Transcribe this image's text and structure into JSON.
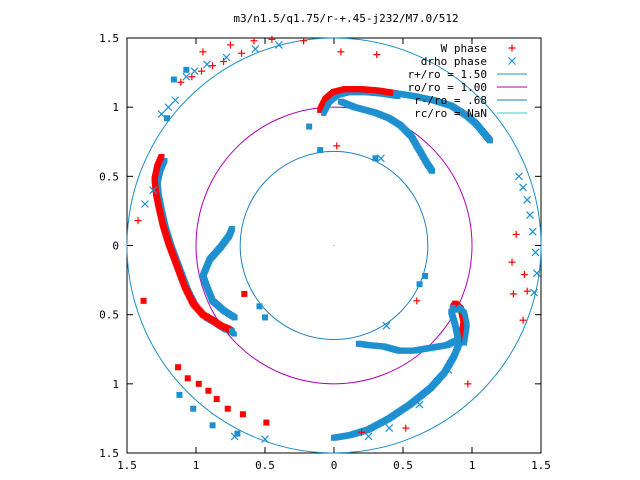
{
  "chart_data": {
    "type": "scatter",
    "title": "m3/n1.5/q1.75/r-+.45-j232/M7.0/512",
    "xlim": [
      -1.5,
      1.5
    ],
    "ylim": [
      -1.5,
      1.5
    ],
    "x_ticks": [
      -1.5,
      -1,
      -0.5,
      0,
      0.5,
      1,
      1.5
    ],
    "x_tick_labels": [
      "1.5",
      "1",
      "0.5",
      "0",
      "0.5",
      "1",
      "1.5"
    ],
    "y_ticks": [
      1.5,
      1,
      0.5,
      0,
      -0.5,
      -1,
      -1.5
    ],
    "y_tick_labels": [
      "1.5",
      "1",
      "0.5",
      "0",
      "0.5",
      "1",
      "1.5"
    ],
    "grid": false,
    "legend_position": "top-right",
    "circles": [
      {
        "label": "r+/ro = 1.50",
        "radius": 1.5,
        "color": "#1f8fc8"
      },
      {
        "label": "ro/ro = 1.00",
        "radius": 1.0,
        "color": "#b000b0"
      },
      {
        "label": "r-/ro = .68",
        "radius": 0.68,
        "color": "#1f7fc0"
      },
      {
        "label": "rc/ro = NaN",
        "radius": null,
        "color": "#40c8c8"
      }
    ],
    "series": [
      {
        "name": "W phase",
        "marker": "+",
        "color": "#ff0000",
        "points": [
          [
            -0.95,
            1.4
          ],
          [
            -0.75,
            1.45
          ],
          [
            -0.58,
            1.48
          ],
          [
            -0.45,
            1.49
          ],
          [
            -0.22,
            1.48
          ],
          [
            0.05,
            1.4
          ],
          [
            0.31,
            1.38
          ],
          [
            -1.11,
            1.18
          ],
          [
            -1.03,
            1.22
          ],
          [
            -0.96,
            1.26
          ],
          [
            -0.88,
            1.3
          ],
          [
            -0.8,
            1.33
          ],
          [
            -0.67,
            1.39
          ],
          [
            0.02,
            0.72
          ],
          [
            -1.42,
            0.18
          ],
          [
            1.29,
            -0.12
          ],
          [
            1.32,
            0.08
          ],
          [
            1.38,
            -0.21
          ],
          [
            1.4,
            -0.33
          ],
          [
            1.37,
            -0.54
          ],
          [
            0.97,
            -1.0
          ],
          [
            0.52,
            -1.32
          ],
          [
            0.2,
            -1.35
          ],
          [
            0.6,
            -0.4
          ],
          [
            1.3,
            -0.35
          ]
        ]
      },
      {
        "name": "drho phase",
        "marker": "x",
        "color": "#1e90d0",
        "points": [
          [
            -1.07,
            1.22
          ],
          [
            -1.01,
            1.26
          ],
          [
            -0.92,
            1.31
          ],
          [
            -0.78,
            1.36
          ],
          [
            -0.57,
            1.42
          ],
          [
            -0.4,
            1.45
          ],
          [
            -1.15,
            1.05
          ],
          [
            -1.2,
            1.0
          ],
          [
            -1.25,
            0.95
          ],
          [
            -1.31,
            0.4
          ],
          [
            -1.37,
            0.3
          ],
          [
            1.34,
            0.5
          ],
          [
            1.37,
            0.42
          ],
          [
            1.4,
            0.33
          ],
          [
            1.42,
            0.22
          ],
          [
            1.44,
            0.1
          ],
          [
            1.46,
            -0.05
          ],
          [
            1.47,
            -0.2
          ],
          [
            1.45,
            -0.34
          ],
          [
            0.38,
            -0.58
          ],
          [
            0.83,
            -0.9
          ],
          [
            0.62,
            -1.15
          ],
          [
            0.4,
            -1.32
          ],
          [
            0.25,
            -1.38
          ],
          [
            -0.72,
            -1.38
          ],
          [
            -0.5,
            -1.4
          ],
          [
            0.34,
            0.63
          ]
        ]
      }
    ],
    "legend": [
      {
        "label": "W phase",
        "kind": "marker",
        "symbol": "+",
        "color": "#ff0000"
      },
      {
        "label": "drho phase",
        "kind": "marker",
        "symbol": "x",
        "color": "#1e90d0"
      },
      {
        "label": "r+/ro = 1.50",
        "kind": "line",
        "color": "#1f8fc8"
      },
      {
        "label": "ro/ro = 1.00",
        "kind": "line",
        "color": "#b000b0"
      },
      {
        "label": "r-/ro = .68",
        "kind": "line",
        "color": "#1f7fc0"
      },
      {
        "label": "rc/ro = NaN",
        "kind": "line",
        "color": "#40c8c8"
      }
    ],
    "arms": [
      {
        "name": "upper-arm",
        "path": [
          [
            -0.1,
            0.98
          ],
          [
            -0.06,
            1.06
          ],
          [
            0.0,
            1.11
          ],
          [
            0.08,
            1.13
          ],
          [
            0.2,
            1.13
          ],
          [
            0.32,
            1.12
          ],
          [
            0.45,
            1.1
          ],
          [
            0.58,
            1.08
          ],
          [
            0.72,
            1.05
          ],
          [
            0.85,
            1.01
          ],
          [
            0.96,
            0.94
          ],
          [
            1.03,
            0.88
          ],
          [
            1.08,
            0.82
          ],
          [
            1.13,
            0.76
          ]
        ],
        "red_from": 0,
        "red_to": 6,
        "branch": [
          [
            0.05,
            1.04
          ],
          [
            0.15,
            1.0
          ],
          [
            0.3,
            0.96
          ],
          [
            0.4,
            0.92
          ],
          [
            0.48,
            0.87
          ],
          [
            0.56,
            0.79
          ],
          [
            0.6,
            0.72
          ],
          [
            0.63,
            0.67
          ],
          [
            0.67,
            0.6
          ],
          [
            0.71,
            0.54
          ]
        ]
      },
      {
        "name": "left-arm",
        "path": [
          [
            -1.25,
            0.64
          ],
          [
            -1.28,
            0.57
          ],
          [
            -1.3,
            0.48
          ],
          [
            -1.29,
            0.38
          ],
          [
            -1.27,
            0.28
          ],
          [
            -1.24,
            0.15
          ],
          [
            -1.2,
            0.02
          ],
          [
            -1.14,
            -0.14
          ],
          [
            -1.08,
            -0.3
          ],
          [
            -1.02,
            -0.42
          ],
          [
            -0.95,
            -0.5
          ],
          [
            -0.88,
            -0.54
          ],
          [
            -0.82,
            -0.58
          ],
          [
            -0.77,
            -0.6
          ],
          [
            -0.74,
            -0.62
          ]
        ],
        "red_from": 0,
        "red_to": 14,
        "branch": [
          [
            -0.72,
            -0.52
          ],
          [
            -0.8,
            -0.47
          ],
          [
            -0.88,
            -0.4
          ],
          [
            -0.92,
            -0.3
          ],
          [
            -0.95,
            -0.22
          ],
          [
            -0.9,
            -0.1
          ],
          [
            -0.82,
            -0.01
          ],
          [
            -0.76,
            0.07
          ],
          [
            -0.74,
            0.12
          ]
        ]
      },
      {
        "name": "right-arm",
        "path": [
          [
            0.0,
            -1.39
          ],
          [
            0.12,
            -1.37
          ],
          [
            0.25,
            -1.33
          ],
          [
            0.4,
            -1.25
          ],
          [
            0.55,
            -1.15
          ],
          [
            0.7,
            -1.03
          ],
          [
            0.8,
            -0.92
          ],
          [
            0.87,
            -0.8
          ],
          [
            0.92,
            -0.68
          ],
          [
            0.94,
            -0.55
          ],
          [
            0.92,
            -0.46
          ],
          [
            0.88,
            -0.42
          ],
          [
            0.86,
            -0.45
          ]
        ],
        "red_from": 8,
        "red_to": 12,
        "branch": [
          [
            0.85,
            -0.48
          ],
          [
            0.88,
            -0.58
          ],
          [
            0.9,
            -0.68
          ],
          [
            0.82,
            -0.72
          ],
          [
            0.7,
            -0.74
          ],
          [
            0.58,
            -0.76
          ],
          [
            0.47,
            -0.76
          ],
          [
            0.36,
            -0.73
          ],
          [
            0.25,
            -0.72
          ],
          [
            0.18,
            -0.71
          ]
        ]
      }
    ],
    "square_markers": [
      {
        "color": "#ff0000",
        "points": [
          [
            -1.38,
            -0.4
          ],
          [
            -1.13,
            -0.88
          ],
          [
            -1.06,
            -0.96
          ],
          [
            -0.98,
            -1.0
          ],
          [
            -0.91,
            -1.05
          ],
          [
            -0.85,
            -1.11
          ],
          [
            -0.77,
            -1.18
          ],
          [
            -0.66,
            -1.22
          ],
          [
            -0.49,
            -1.28
          ],
          [
            -0.65,
            -0.35
          ]
        ]
      },
      {
        "color": "#1e90d0",
        "points": [
          [
            -1.12,
            -1.08
          ],
          [
            -1.02,
            -1.18
          ],
          [
            -0.88,
            -1.3
          ],
          [
            -0.7,
            -1.36
          ],
          [
            -1.07,
            1.27
          ],
          [
            -1.16,
            1.2
          ],
          [
            -1.21,
            0.92
          ],
          [
            0.3,
            0.63
          ],
          [
            -0.1,
            0.69
          ],
          [
            -0.5,
            -0.52
          ],
          [
            -0.54,
            -0.44
          ],
          [
            -0.18,
            0.86
          ],
          [
            0.62,
            -0.28
          ],
          [
            0.66,
            -0.22
          ]
        ]
      }
    ]
  }
}
